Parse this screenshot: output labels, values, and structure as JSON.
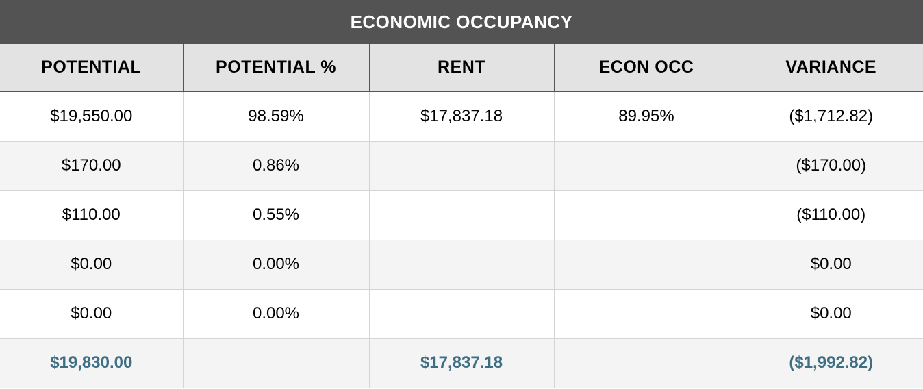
{
  "title": "ECONOMIC OCCUPANCY",
  "columns": [
    "POTENTIAL",
    "POTENTIAL %",
    "RENT",
    "ECON OCC",
    "VARIANCE"
  ],
  "rows": [
    [
      "$19,550.00",
      "98.59%",
      "$17,837.18",
      "89.95%",
      "($1,712.82)"
    ],
    [
      "$170.00",
      "0.86%",
      "",
      "",
      "($170.00)"
    ],
    [
      "$110.00",
      "0.55%",
      "",
      "",
      "($110.00)"
    ],
    [
      "$0.00",
      "0.00%",
      "",
      "",
      "$0.00"
    ],
    [
      "$0.00",
      "0.00%",
      "",
      "",
      "$0.00"
    ]
  ],
  "totals": [
    "$19,830.00",
    "",
    "$17,837.18",
    "",
    "($1,992.82)"
  ],
  "colors": {
    "title_bg": "#535353",
    "header_bg": "#e3e3e3",
    "total_text": "#3e6e84"
  }
}
